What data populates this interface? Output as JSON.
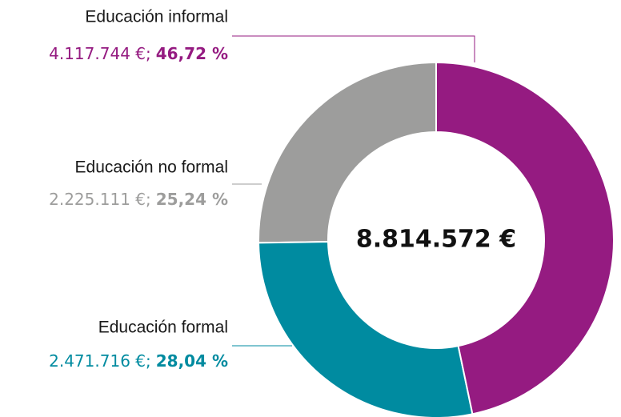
{
  "chart_data": {
    "type": "donut",
    "categories": [
      "Educación informal",
      "Educación formal",
      "Educación no formal"
    ],
    "values": [
      46.72,
      28.04,
      25.24
    ],
    "value_labels": [
      "46,72 %",
      "28,04 %",
      "25,24 %"
    ],
    "amounts": [
      4117744,
      2471716,
      2225111
    ],
    "amount_labels": [
      "4.117.744 €;",
      "2.471.716 €;",
      "2.225.111 €;"
    ],
    "colors": [
      "#951b81",
      "#008ba0",
      "#9d9d9c"
    ],
    "total": 8814572,
    "total_label": "8.814.572 €"
  }
}
